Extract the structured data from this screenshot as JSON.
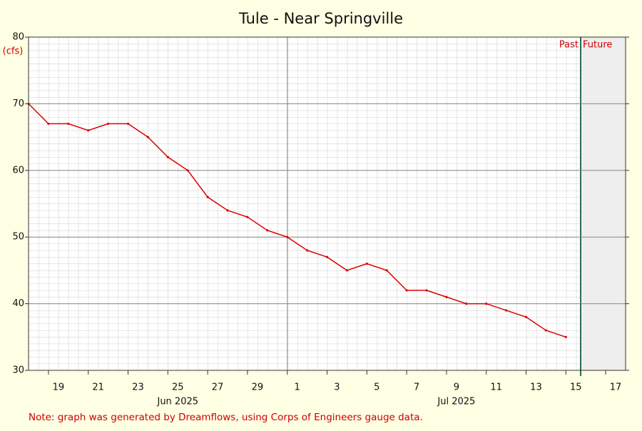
{
  "chart_data": {
    "type": "line",
    "title": "Tule - Near Springville",
    "y_unit": "(cfs)",
    "note": "Note: graph was generated by Dreamflows, using Corps of Engineers gauge data.",
    "past_label": "Past",
    "future_label": "Future",
    "x": [
      "2025-06-18",
      "2025-06-19",
      "2025-06-20",
      "2025-06-21",
      "2025-06-22",
      "2025-06-23",
      "2025-06-24",
      "2025-06-25",
      "2025-06-26",
      "2025-06-27",
      "2025-06-28",
      "2025-06-29",
      "2025-06-30",
      "2025-07-01",
      "2025-07-02",
      "2025-07-03",
      "2025-07-04",
      "2025-07-05",
      "2025-07-06",
      "2025-07-07",
      "2025-07-08",
      "2025-07-09",
      "2025-07-10",
      "2025-07-11",
      "2025-07-12",
      "2025-07-13",
      "2025-07-14",
      "2025-07-15"
    ],
    "series": [
      {
        "name": "Tule - Near Springville",
        "color": "#dd0000",
        "values": [
          70,
          67,
          67,
          66,
          67,
          67,
          65,
          62,
          60,
          56,
          54,
          53,
          51,
          50,
          48,
          47,
          45,
          46,
          45,
          42,
          42,
          41,
          40,
          40,
          39,
          38,
          36,
          35
        ]
      }
    ],
    "xlim": [
      "2025-06-18",
      "2025-07-18"
    ],
    "xticks": [
      {
        "value": "2025-06-19",
        "label": "19"
      },
      {
        "value": "2025-06-21",
        "label": "21"
      },
      {
        "value": "2025-06-23",
        "label": "23"
      },
      {
        "value": "2025-06-25",
        "label": "25"
      },
      {
        "value": "2025-06-27",
        "label": "27"
      },
      {
        "value": "2025-06-29",
        "label": "29"
      },
      {
        "value": "2025-07-01",
        "label": "1"
      },
      {
        "value": "2025-07-03",
        "label": "3"
      },
      {
        "value": "2025-07-05",
        "label": "5"
      },
      {
        "value": "2025-07-07",
        "label": "7"
      },
      {
        "value": "2025-07-09",
        "label": "9"
      },
      {
        "value": "2025-07-11",
        "label": "11"
      },
      {
        "value": "2025-07-13",
        "label": "13"
      },
      {
        "value": "2025-07-15",
        "label": "15"
      },
      {
        "value": "2025-07-17",
        "label": "17"
      }
    ],
    "month_labels": [
      {
        "value": "2025-06-25",
        "label": "Jun 2025"
      },
      {
        "value": "2025-07-09",
        "label": "Jul 2025"
      }
    ],
    "ylim": [
      30,
      80
    ],
    "yticks": [
      30,
      40,
      50,
      60,
      70,
      80
    ],
    "grid": true
  }
}
